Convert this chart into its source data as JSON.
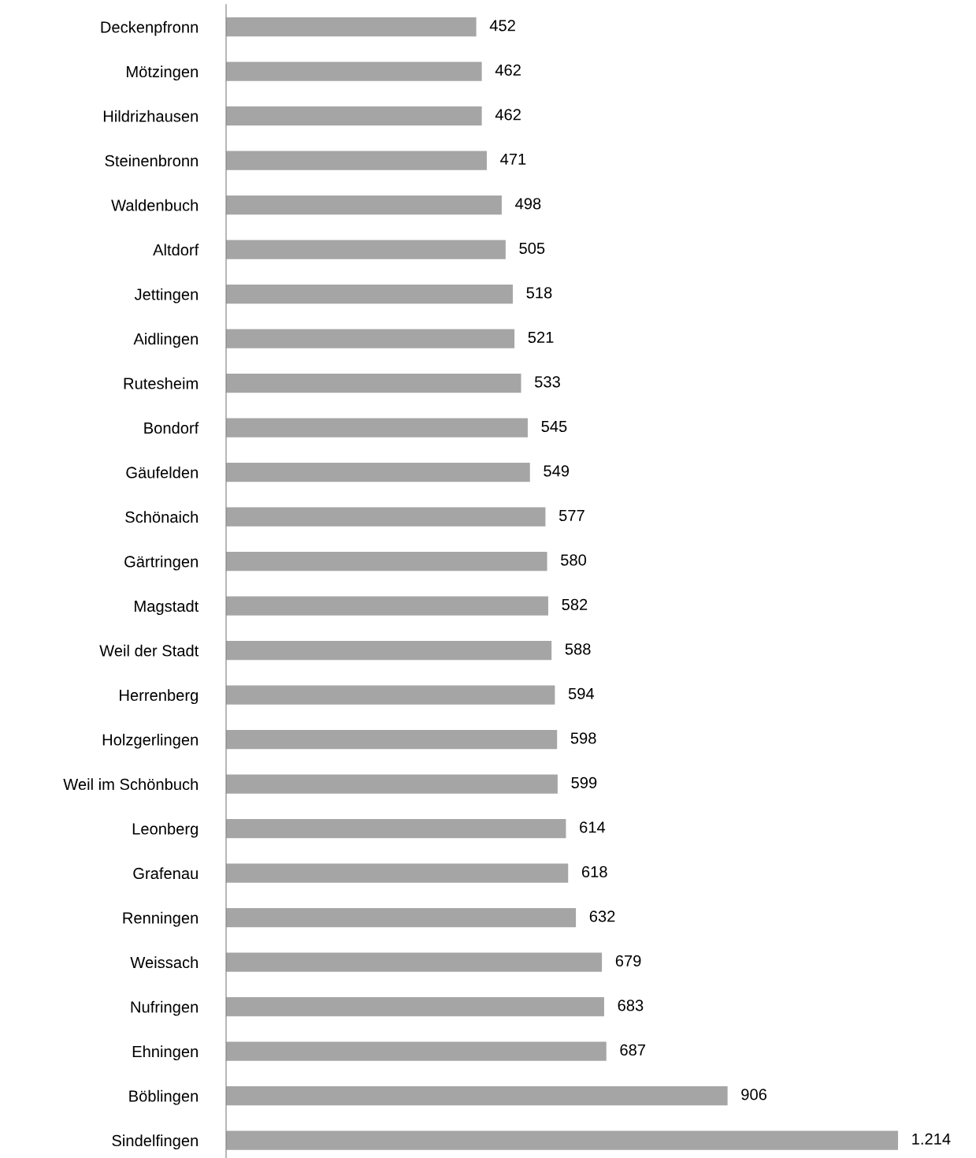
{
  "chart_data": {
    "type": "bar",
    "orientation": "horizontal",
    "color": "#a5a5a5",
    "categories": [
      "Deckenpfronn",
      "Mötzingen",
      "Hildrizhausen",
      "Steinenbronn",
      "Waldenbuch",
      "Altdorf",
      "Jettingen",
      "Aidlingen",
      "Rutesheim",
      "Bondorf",
      "Gäufelden",
      "Schönaich",
      "Gärtringen",
      "Magstadt",
      "Weil der Stadt",
      "Herrenberg",
      "Holzgerlingen",
      "Weil im Schönbuch",
      "Leonberg",
      "Grafenau",
      "Renningen",
      "Weissach",
      "Nufringen",
      "Ehningen",
      "Böblingen",
      "Sindelfingen"
    ],
    "values": [
      452,
      462,
      462,
      471,
      498,
      505,
      518,
      521,
      533,
      545,
      549,
      577,
      580,
      582,
      588,
      594,
      598,
      599,
      614,
      618,
      632,
      679,
      683,
      687,
      906,
      1214
    ],
    "value_labels": [
      "452",
      "462",
      "462",
      "471",
      "498",
      "505",
      "518",
      "521",
      "533",
      "545",
      "549",
      "577",
      "580",
      "582",
      "588",
      "594",
      "598",
      "599",
      "614",
      "618",
      "632",
      "679",
      "683",
      "687",
      "906",
      "1.214"
    ],
    "tick_labels": "y",
    "grid": false,
    "legend": false
  }
}
